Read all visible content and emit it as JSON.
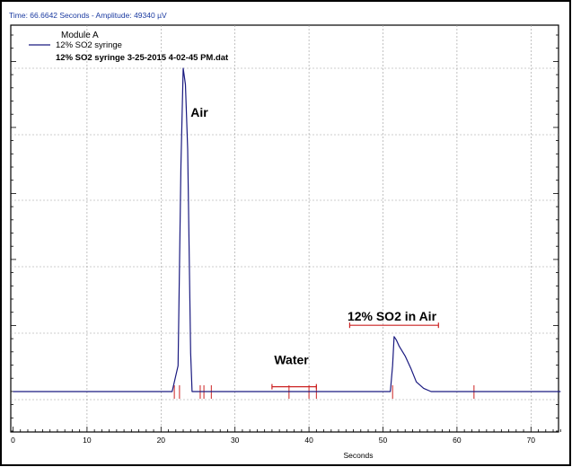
{
  "status_readout": "Time:  66.6642 Seconds - Amplitude:  49340 µV",
  "legend": {
    "module": "Module A",
    "series_label": "12% SO2 syringe",
    "file_label": "12% SO2 syringe 3-25-2015 4-02-45 PM.dat"
  },
  "colors": {
    "trace": "#1a1a80",
    "baseline_marks": "#cc2222",
    "status_text": "#1a3aa0",
    "frame": "#000000",
    "grid": "#999999"
  },
  "chart_data": {
    "type": "line",
    "xlabel": "Seconds",
    "ylabel": "",
    "xlim": [
      0,
      74
    ],
    "ylim": [
      -5,
      100
    ],
    "x_ticks": [
      0,
      10,
      20,
      30,
      40,
      50,
      60,
      70
    ],
    "grid": true,
    "legend_position": "top-left",
    "series": [
      {
        "name": "12% SO2 syringe",
        "x": [
          0,
          21.5,
          22.3,
          22.7,
          23.0,
          23.3,
          23.6,
          24.0,
          24.2,
          50.0,
          51.0,
          51.3,
          51.5,
          51.8,
          52.2,
          53.0,
          53.8,
          54.5,
          55.5,
          56.5,
          74
        ],
        "y": [
          0,
          0,
          8,
          70,
          100,
          95,
          75,
          12,
          0,
          0,
          0,
          8,
          17,
          16,
          14,
          11,
          7,
          3,
          1,
          0,
          0
        ]
      }
    ],
    "annotations": [
      {
        "text": "Air",
        "x": 24.0,
        "y": 85
      },
      {
        "text": "Water",
        "x": 35.3,
        "y": 8.5
      },
      {
        "text": "12% SO2 in Air",
        "x": 45.2,
        "y": 22
      }
    ],
    "integration_ranges": [
      {
        "x_start": 35.0,
        "x_end": 41.0,
        "y": 1.5
      },
      {
        "x_start": 45.5,
        "x_end": 57.5,
        "y": 20.5
      }
    ],
    "baseline_ticks_x": [
      21.8,
      22.5,
      25.3,
      25.8,
      26.8,
      37.3,
      40.0,
      41.0,
      51.3,
      62.3
    ]
  }
}
